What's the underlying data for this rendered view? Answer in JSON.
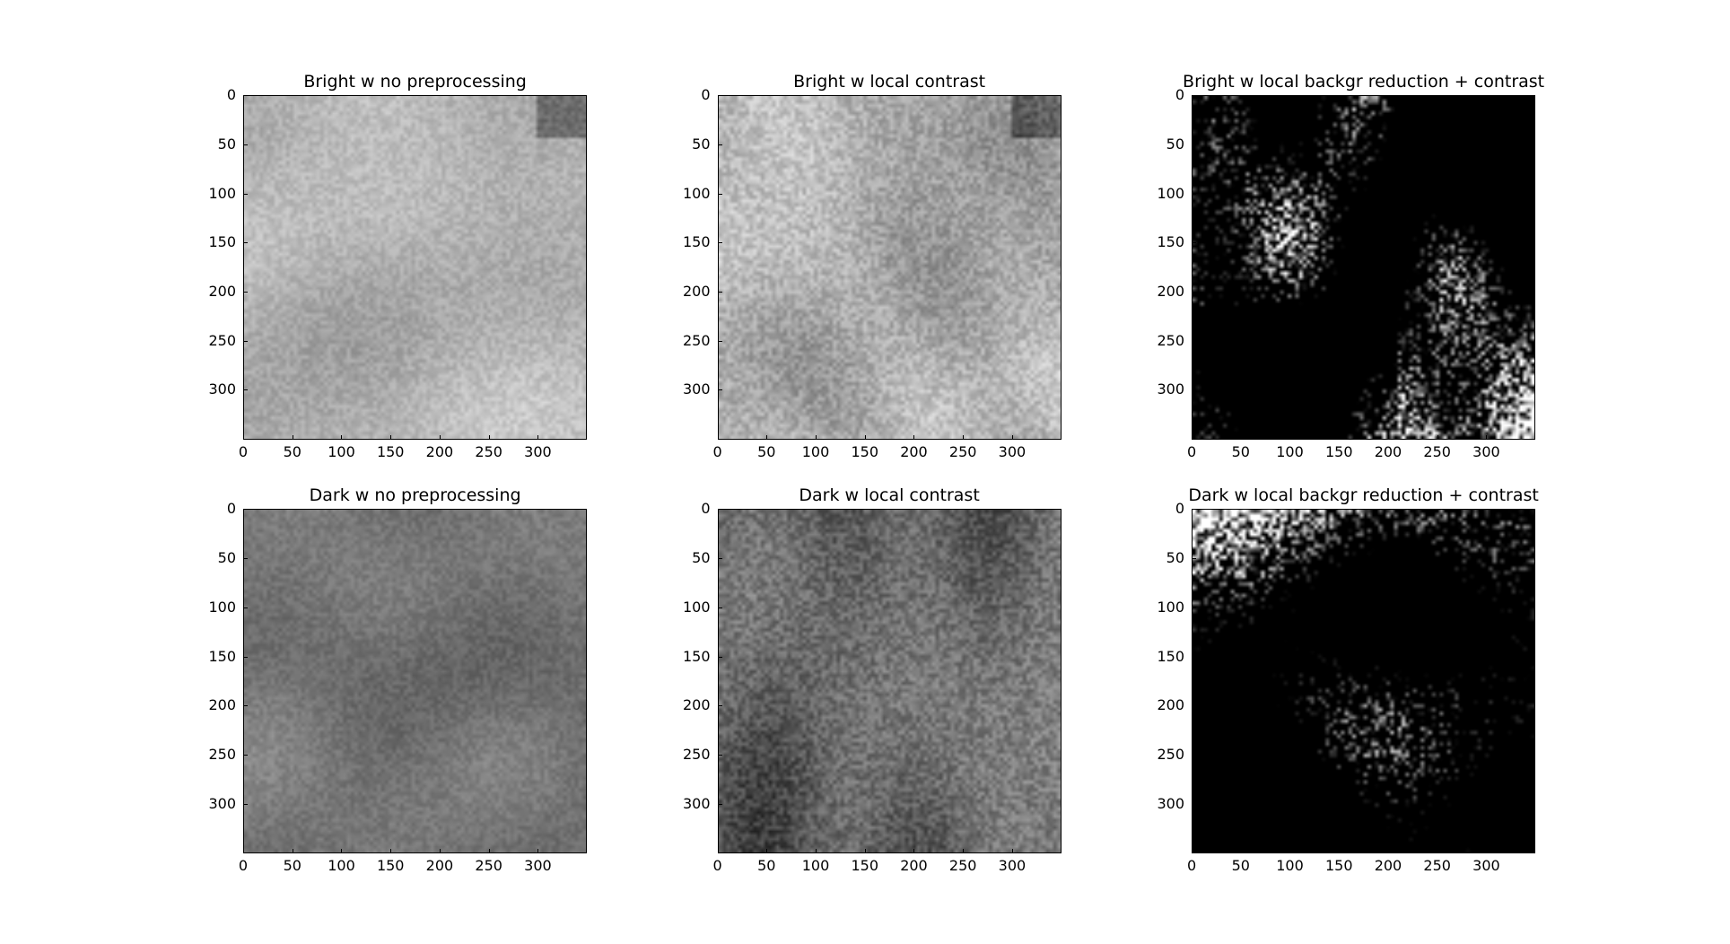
{
  "figure": {
    "panels": [
      {
        "id": "bright-raw",
        "title": "Bright w no preprocessing",
        "x_ticks": [
          "0",
          "50",
          "100",
          "150",
          "200",
          "250",
          "300"
        ],
        "y_ticks": [
          "0",
          "50",
          "100",
          "150",
          "200",
          "250",
          "300"
        ],
        "style": "bright-raw"
      },
      {
        "id": "bright-contrast",
        "title": "Bright w local contrast",
        "x_ticks": [
          "0",
          "50",
          "100",
          "150",
          "200",
          "250",
          "300"
        ],
        "y_ticks": [
          "0",
          "50",
          "100",
          "150",
          "200",
          "250",
          "300"
        ],
        "style": "bright-contrast"
      },
      {
        "id": "bright-backgr",
        "title": "Bright w local backgr reduction + contrast",
        "x_ticks": [
          "0",
          "50",
          "100",
          "150",
          "200",
          "250",
          "300"
        ],
        "y_ticks": [
          "0",
          "50",
          "100",
          "150",
          "200",
          "250",
          "300"
        ],
        "style": "bright-backgr"
      },
      {
        "id": "dark-raw",
        "title": "Dark w no preprocessing",
        "x_ticks": [
          "0",
          "50",
          "100",
          "150",
          "200",
          "250",
          "300"
        ],
        "y_ticks": [
          "0",
          "50",
          "100",
          "150",
          "200",
          "250",
          "300"
        ],
        "style": "dark-raw"
      },
      {
        "id": "dark-contrast",
        "title": "Dark w local contrast",
        "x_ticks": [
          "0",
          "50",
          "100",
          "150",
          "200",
          "250",
          "300"
        ],
        "y_ticks": [
          "0",
          "50",
          "100",
          "150",
          "200",
          "250",
          "300"
        ],
        "style": "dark-contrast"
      },
      {
        "id": "dark-backgr",
        "title": "Dark w local backgr reduction + contrast",
        "x_ticks": [
          "0",
          "50",
          "100",
          "150",
          "200",
          "250",
          "300"
        ],
        "y_ticks": [
          "0",
          "50",
          "100",
          "150",
          "200",
          "250",
          "300"
        ],
        "style": "dark-backgr"
      }
    ],
    "axis_range": [
      0,
      350
    ],
    "colormap": "gray"
  }
}
